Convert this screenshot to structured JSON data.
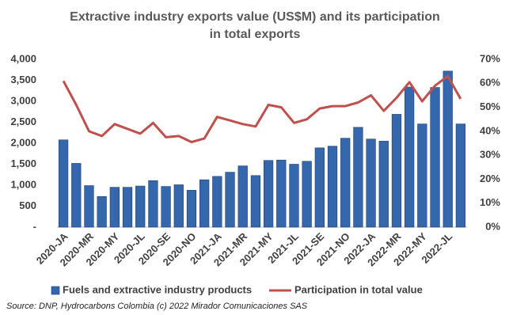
{
  "chart_data": {
    "type": "bar-line",
    "title": [
      "Extractive industry exports value (US$M) and  its participation",
      "in total exports"
    ],
    "source": "Source: DNP, Hydrocarbons Colombia (c) 2022 Mirador Comunicaciones SAS",
    "categories": [
      "2020-JA",
      null,
      "2020-MR",
      null,
      "2020-MY",
      null,
      "2020-JL",
      null,
      "2020-SE",
      null,
      "2020-NO",
      null,
      "2021-JA",
      null,
      "2021-MR",
      null,
      "2021-MY",
      null,
      "2021-JL",
      null,
      "2021-SE",
      null,
      "2021-NO",
      null,
      "2022-JA",
      null,
      "2022-MR",
      null,
      "2022-MY",
      null,
      "2022-JL",
      null
    ],
    "series": [
      {
        "name": "Fuels and extractive industry products",
        "type": "bar",
        "color": "#3567ad",
        "values": [
          2080,
          1520,
          990,
          730,
          950,
          950,
          980,
          1110,
          970,
          1010,
          880,
          1130,
          1210,
          1310,
          1460,
          1230,
          1590,
          1600,
          1500,
          1570,
          1890,
          1930,
          2120,
          2380,
          2100,
          2050,
          2690,
          3340,
          2460,
          3330,
          3720,
          2460
        ]
      },
      {
        "name": "Participation in total value",
        "type": "line",
        "axis": "y2",
        "color": "#c0504d",
        "values": [
          61,
          51,
          40,
          38,
          43,
          41,
          39,
          43.5,
          37.5,
          38,
          35.5,
          37,
          46,
          44.5,
          43,
          42,
          51,
          50,
          43.5,
          45,
          49.5,
          50.5,
          50.5,
          52,
          55,
          48.5,
          54,
          60.5,
          52.5,
          59,
          63,
          53.5
        ]
      }
    ],
    "ylim": [
      0,
      4000
    ],
    "yticks": [
      {
        "value": 0,
        "label": "-"
      },
      {
        "value": 500,
        "label": "500"
      },
      {
        "value": 1000,
        "label": "1,000"
      },
      {
        "value": 1500,
        "label": "1,500"
      },
      {
        "value": 2000,
        "label": "2,000"
      },
      {
        "value": 2500,
        "label": "2,500"
      },
      {
        "value": 3000,
        "label": "3,000"
      },
      {
        "value": 3500,
        "label": "3,500"
      },
      {
        "value": 4000,
        "label": "4,000"
      }
    ],
    "y2lim": [
      0,
      70
    ],
    "y2ticks": [
      {
        "value": 0,
        "label": "0%"
      },
      {
        "value": 10,
        "label": "10%"
      },
      {
        "value": 20,
        "label": "20%"
      },
      {
        "value": 30,
        "label": "30%"
      },
      {
        "value": 40,
        "label": "40%"
      },
      {
        "value": 50,
        "label": "50%"
      },
      {
        "value": 60,
        "label": "60%"
      },
      {
        "value": 70,
        "label": "70%"
      }
    ],
    "grid": false,
    "legend": "bottom"
  }
}
